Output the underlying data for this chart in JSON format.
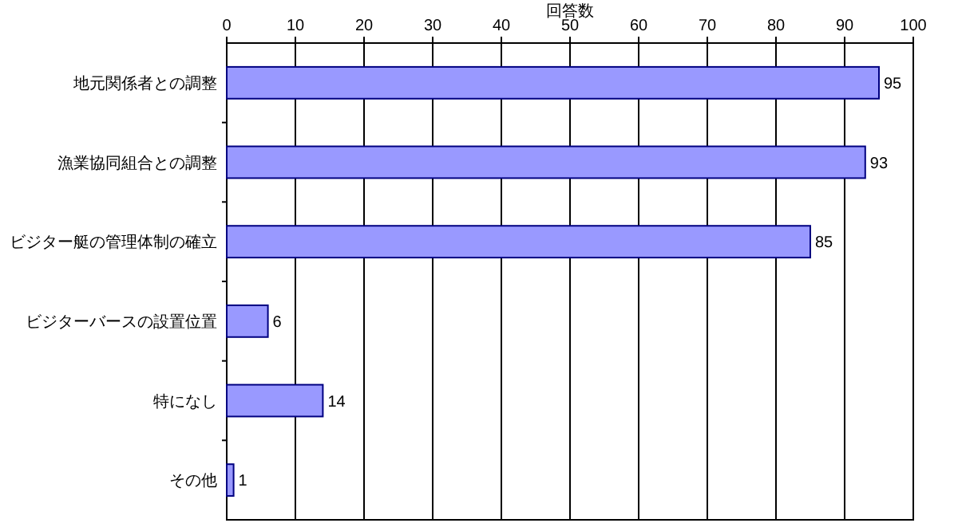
{
  "chart_data": {
    "type": "bar",
    "orientation": "horizontal",
    "xlabel": "回答数",
    "categories": [
      "地元関係者との調整",
      "漁業協同組合との調整",
      "ビジター艇の管理体制の確立",
      "ビジターバースの設置位置",
      "特になし",
      "その他"
    ],
    "values": [
      95,
      93,
      85,
      6,
      14,
      1
    ],
    "color": "#9999ff",
    "xlim": [
      0,
      100
    ],
    "xticks": [
      0,
      10,
      20,
      30,
      40,
      50,
      60,
      70,
      80,
      90,
      100
    ],
    "grid": "x",
    "data_labels": true
  }
}
